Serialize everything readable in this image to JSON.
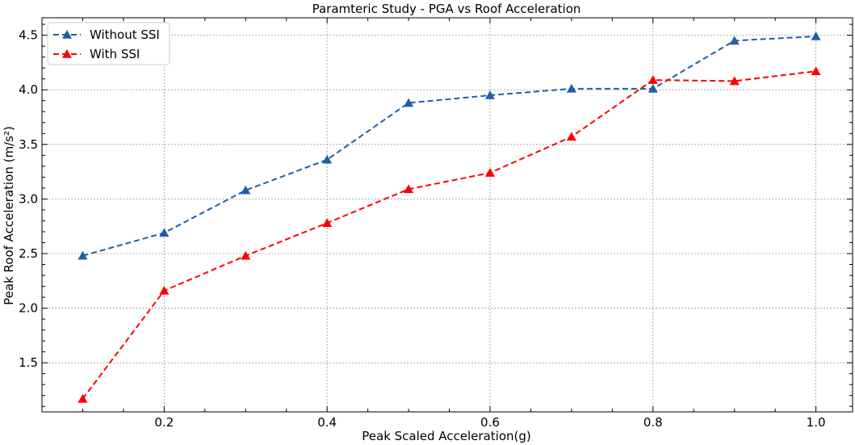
{
  "chart_data": {
    "type": "line",
    "title": "Paramteric Study - PGA vs Roof Acceleration",
    "xlabel": "Peak Scaled Acceleration(g)",
    "ylabel": "Peak Roof Acceleration (m/s²)",
    "xlim": [
      0.05,
      1.045
    ],
    "ylim": [
      1.05,
      4.66
    ],
    "xticks": [
      0.2,
      0.4,
      0.6,
      0.8,
      1.0
    ],
    "xtick_labels": [
      "0.2",
      "0.4",
      "0.6",
      "0.8",
      "1.0"
    ],
    "yticks": [
      1.5,
      2.0,
      2.5,
      3.0,
      3.5,
      4.0,
      4.5
    ],
    "ytick_labels": [
      "1.5",
      "2.0",
      "2.5",
      "3.0",
      "3.5",
      "4.0",
      "4.5"
    ],
    "grid": true,
    "legend_position": "upper-left",
    "x": [
      0.1,
      0.2,
      0.3,
      0.4,
      0.5,
      0.6,
      0.7,
      0.8,
      0.9,
      1.0
    ],
    "series": [
      {
        "name": "Without SSI",
        "color": "#1f5fa6",
        "marker": "triangle",
        "linestyle": "dashed",
        "values": [
          2.48,
          2.69,
          3.08,
          3.36,
          3.88,
          3.95,
          4.01,
          4.01,
          4.45,
          4.49
        ]
      },
      {
        "name": "With SSI",
        "color": "#ff0000",
        "marker": "triangle",
        "linestyle": "dashed",
        "values": [
          1.17,
          2.16,
          2.48,
          2.78,
          3.09,
          3.24,
          3.57,
          4.09,
          4.08,
          4.17
        ]
      }
    ]
  }
}
